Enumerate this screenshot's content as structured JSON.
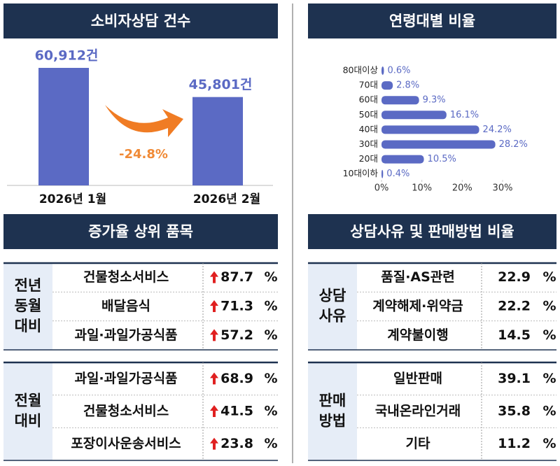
{
  "chart_data": [
    {
      "type": "bar",
      "title": "소비자상담 건수",
      "categories": [
        "2026년 1월",
        "2026년 2월"
      ],
      "values": [
        60912,
        45801
      ],
      "value_labels": [
        "60,912건",
        "45,801건"
      ],
      "color": "#5b6ac4",
      "annotation": "-24.8%"
    },
    {
      "type": "bar",
      "orientation": "horizontal",
      "title": "연령대별 비율",
      "categories": [
        "80대이상",
        "70대",
        "60대",
        "50대",
        "40대",
        "30대",
        "20대",
        "10대이하"
      ],
      "values": [
        0.6,
        2.8,
        9.3,
        16.1,
        24.2,
        28.2,
        10.5,
        0.4
      ],
      "value_labels": [
        "0.6%",
        "2.8%",
        "9.3%",
        "16.1%",
        "24.2%",
        "28.2%",
        "10.5%",
        "0.4%"
      ],
      "color": "#5b6ac4",
      "xlim": [
        0,
        30
      ],
      "xticks": [
        {
          "value": 0,
          "label": "0%"
        },
        {
          "value": 10,
          "label": "10%"
        },
        {
          "value": 20,
          "label": "20%"
        },
        {
          "value": 30,
          "label": "30%"
        }
      ]
    }
  ],
  "tables": [
    {
      "title": "증가율 상위 품목",
      "unit": "%",
      "groups": [
        {
          "label": [
            "전년",
            "동월",
            "대비"
          ],
          "rows": [
            {
              "item": "건물청소서비스",
              "value": 87.7
            },
            {
              "item": "배달음식",
              "value": 71.3
            },
            {
              "item": "과일·과일가공식품",
              "value": 57.2
            }
          ]
        },
        {
          "label": [
            "전월",
            "대비"
          ],
          "rows": [
            {
              "item": "과일·과일가공식품",
              "value": 68.9
            },
            {
              "item": "건물청소서비스",
              "value": 41.5
            },
            {
              "item": "포장이사운송서비스",
              "value": 23.8
            }
          ]
        }
      ]
    },
    {
      "title": "상담사유 및 판매방법 비율",
      "unit": "%",
      "groups": [
        {
          "label": [
            "상담",
            "사유"
          ],
          "rows": [
            {
              "item": "품질·AS관련",
              "value": 22.9
            },
            {
              "item": "계약해제·위약금",
              "value": 22.2
            },
            {
              "item": "계약불이행",
              "value": 14.5
            }
          ]
        },
        {
          "label": [
            "판매",
            "방법"
          ],
          "rows": [
            {
              "item": "일반판매",
              "value": 39.1
            },
            {
              "item": "국내온라인거래",
              "value": 35.8
            },
            {
              "item": "기타",
              "value": 11.2
            }
          ]
        }
      ]
    }
  ]
}
